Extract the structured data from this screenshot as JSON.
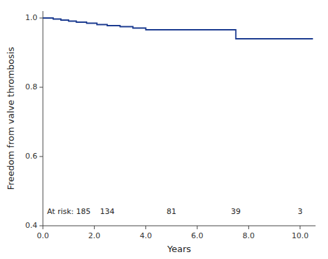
{
  "chart_data": {
    "type": "line",
    "x": [
      0.0,
      0.4,
      0.4,
      0.7,
      0.7,
      1.0,
      1.0,
      1.3,
      1.3,
      1.7,
      1.7,
      2.1,
      2.1,
      2.5,
      2.5,
      3.0,
      3.0,
      3.5,
      3.5,
      4.0,
      4.0,
      7.5,
      7.5,
      10.5
    ],
    "values": [
      1.0,
      1.0,
      0.997,
      0.997,
      0.994,
      0.994,
      0.991,
      0.991,
      0.988,
      0.988,
      0.985,
      0.985,
      0.981,
      0.981,
      0.978,
      0.978,
      0.975,
      0.975,
      0.971,
      0.971,
      0.966,
      0.966,
      0.94,
      0.94
    ],
    "color": "#1a3a8f",
    "xlim": [
      0.0,
      10.6
    ],
    "ylim": [
      0.4,
      1.02
    ],
    "xticks": [
      {
        "value": 0.0,
        "label": "0.0"
      },
      {
        "value": 2.0,
        "label": "2.0"
      },
      {
        "value": 4.0,
        "label": "4.0"
      },
      {
        "value": 6.0,
        "label": "6.0"
      },
      {
        "value": 8.0,
        "label": "8.0"
      },
      {
        "value": 10.0,
        "label": "10.0"
      }
    ],
    "yticks": [
      0.4,
      0.6,
      0.8,
      {
        "value": 1.0,
        "label": "1.0"
      }
    ],
    "x_label": "Years",
    "y_label": "Freedom from valve thrombosis",
    "grid": false,
    "annotations": [
      {
        "text": "At risk: 185"
      },
      {
        "text": "134",
        "x": 2.5
      },
      {
        "text": "81",
        "x": 5.0
      },
      {
        "text": "39",
        "x": 7.5
      },
      {
        "text": "3",
        "x": 10.0
      }
    ]
  }
}
